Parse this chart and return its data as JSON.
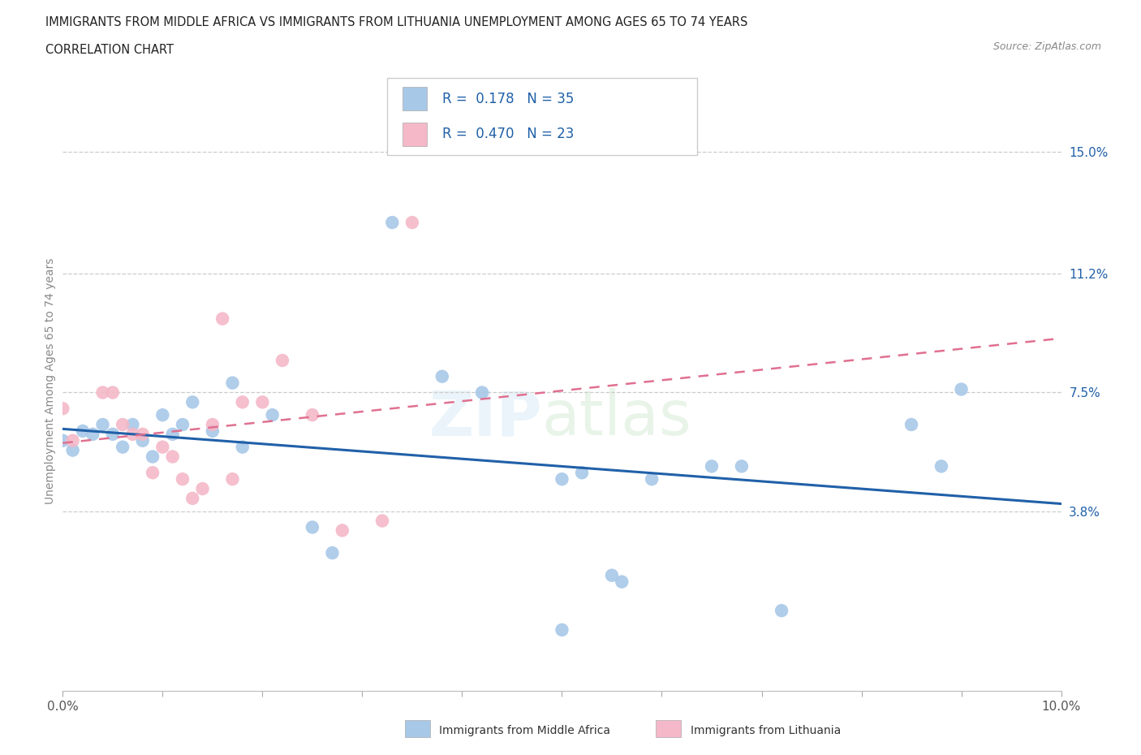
{
  "title_line1": "IMMIGRANTS FROM MIDDLE AFRICA VS IMMIGRANTS FROM LITHUANIA UNEMPLOYMENT AMONG AGES 65 TO 74 YEARS",
  "title_line2": "CORRELATION CHART",
  "source_text": "Source: ZipAtlas.com",
  "ylabel": "Unemployment Among Ages 65 to 74 years",
  "xlim": [
    0.0,
    0.1
  ],
  "ylim": [
    -0.018,
    0.175
  ],
  "xticks": [
    0.0,
    0.01,
    0.02,
    0.03,
    0.04,
    0.05,
    0.06,
    0.07,
    0.08,
    0.09,
    0.1
  ],
  "xticklabels": [
    "0.0%",
    "",
    "",
    "",
    "",
    "",
    "",
    "",
    "",
    "",
    "10.0%"
  ],
  "ytick_positions": [
    0.038,
    0.075,
    0.112,
    0.15
  ],
  "ytick_labels": [
    "3.8%",
    "7.5%",
    "11.2%",
    "15.0%"
  ],
  "r_blue": 0.178,
  "n_blue": 35,
  "r_pink": 0.47,
  "n_pink": 23,
  "blue_color": "#a8c8e8",
  "pink_color": "#f4b8c8",
  "line_blue": "#2060a8",
  "line_pink": "#e07090",
  "blue_x": [
    0.0,
    0.001,
    0.002,
    0.003,
    0.004,
    0.005,
    0.006,
    0.007,
    0.008,
    0.009,
    0.01,
    0.011,
    0.012,
    0.013,
    0.015,
    0.017,
    0.018,
    0.021,
    0.025,
    0.027,
    0.033,
    0.038,
    0.042,
    0.05,
    0.052,
    0.055,
    0.056,
    0.059,
    0.065,
    0.068,
    0.072,
    0.085,
    0.088,
    0.09,
    0.05
  ],
  "blue_y": [
    0.06,
    0.057,
    0.063,
    0.062,
    0.065,
    0.062,
    0.058,
    0.065,
    0.06,
    0.055,
    0.068,
    0.062,
    0.065,
    0.072,
    0.063,
    0.078,
    0.058,
    0.068,
    0.033,
    0.025,
    0.128,
    0.08,
    0.075,
    0.048,
    0.05,
    0.018,
    0.016,
    0.048,
    0.052,
    0.052,
    0.007,
    0.065,
    0.052,
    0.076,
    0.001
  ],
  "pink_x": [
    0.0,
    0.001,
    0.004,
    0.005,
    0.006,
    0.007,
    0.008,
    0.009,
    0.01,
    0.011,
    0.012,
    0.013,
    0.014,
    0.015,
    0.016,
    0.017,
    0.018,
    0.02,
    0.022,
    0.025,
    0.028,
    0.032,
    0.035
  ],
  "pink_y": [
    0.07,
    0.06,
    0.075,
    0.075,
    0.065,
    0.062,
    0.062,
    0.05,
    0.058,
    0.055,
    0.048,
    0.042,
    0.045,
    0.065,
    0.098,
    0.048,
    0.072,
    0.072,
    0.085,
    0.068,
    0.032,
    0.035,
    0.128
  ],
  "legend_blue_text": "R =  0.178   N = 35",
  "legend_pink_text": "R =  0.470   N = 23",
  "bottom_label_blue": "Immigrants from Middle Africa",
  "bottom_label_pink": "Immigrants from Lithuania"
}
